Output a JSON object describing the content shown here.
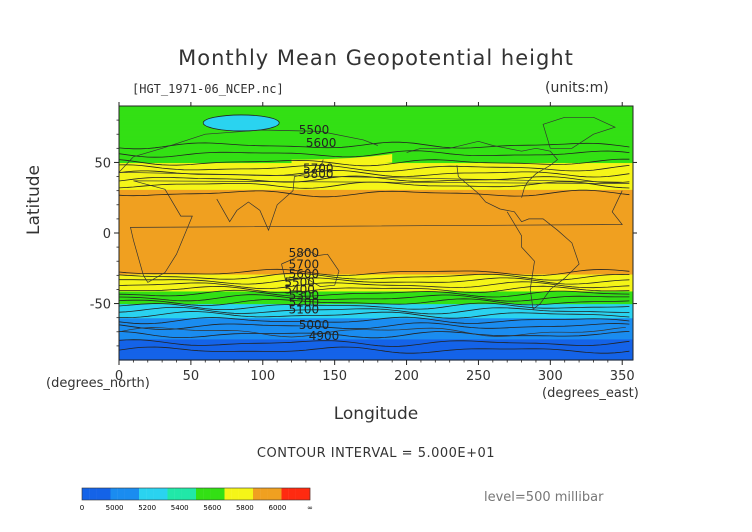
{
  "chart_data": {
    "type": "heatmap",
    "title": "Monthly Mean Geopotential height",
    "file_label": "[HGT_1971-06_NCEP.nc]",
    "units_label": "(units:m)",
    "xlabel": "Longitude",
    "ylabel": "Latitude",
    "x_units": "(degrees_north)",
    "x_units2": "(degrees_east)",
    "xlim": [
      0,
      357.5
    ],
    "ylim": [
      -90,
      90
    ],
    "x_ticks": [
      0,
      50,
      100,
      150,
      200,
      250,
      300,
      350
    ],
    "y_ticks": [
      50,
      0,
      -50
    ],
    "contour_interval": "CONTOUR INTERVAL = 5.000E+01",
    "level": "level=500 millibar",
    "contour_labels": [
      "5500",
      "5600",
      "5700",
      "5800",
      "5800",
      "5700",
      "5600",
      "5500",
      "5400",
      "5300",
      "5200",
      "5100",
      "5000",
      "4900"
    ],
    "colorbar": {
      "ticks": [
        "0",
        "5000",
        "5200",
        "5400",
        "5600",
        "5800",
        "6000",
        "∞"
      ],
      "colors": [
        "#1463e8",
        "#1a8cf0",
        "#2ad3f0",
        "#21e8a8",
        "#33e014",
        "#f5f518",
        "#f0a020",
        "#ff2a10"
      ]
    },
    "band_profile": {
      "lat": [
        -90,
        -80,
        -70,
        -62,
        -55,
        -48,
        -43,
        -38,
        -33,
        -28,
        28,
        36,
        42,
        48,
        56,
        64,
        72,
        90
      ],
      "height": [
        4900,
        4950,
        5050,
        5150,
        5300,
        5450,
        5550,
        5650,
        5750,
        5820,
        5820,
        5760,
        5700,
        5620,
        5550,
        5500,
        5480,
        5450
      ]
    },
    "fill_colors": {
      "lt5000": "#1463e8",
      "5000": "#1a8cf0",
      "5200": "#2ad3f0",
      "5400": "#33e014",
      "5600": "#f5f518",
      "5800": "#f0a020",
      "6000": "#ff2a10"
    }
  }
}
